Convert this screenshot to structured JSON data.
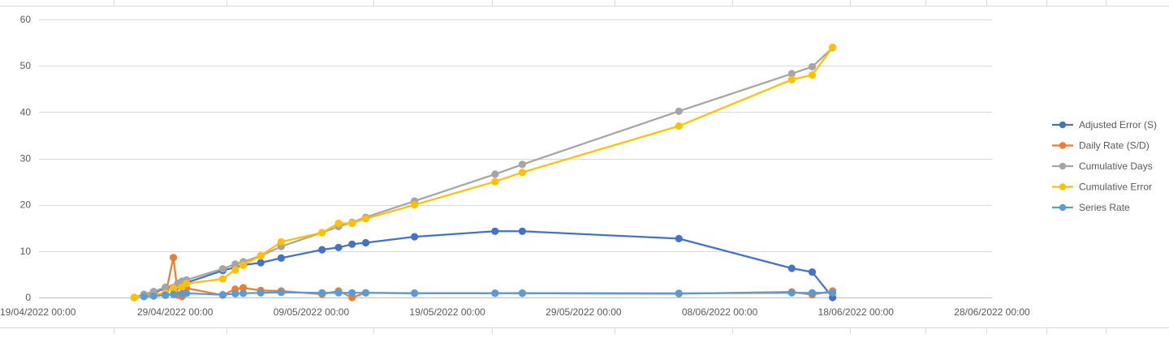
{
  "chart_data": {
    "type": "line",
    "title": "",
    "xlabel": "",
    "ylabel": "",
    "ylim": [
      0,
      60
    ],
    "yticks": [
      0,
      10,
      20,
      30,
      40,
      50,
      60
    ],
    "xlim": [
      "2022-04-19T00:00",
      "2022-06-28T00:00"
    ],
    "xticks": [
      {
        "value": "2022-04-19T00:00",
        "label": "19/04/2022 00:00"
      },
      {
        "value": "2022-04-29T00:00",
        "label": "29/04/2022 00:00"
      },
      {
        "value": "2022-05-09T00:00",
        "label": "09/05/2022 00:00"
      },
      {
        "value": "2022-05-19T00:00",
        "label": "19/05/2022 00:00"
      },
      {
        "value": "2022-05-29T00:00",
        "label": "29/05/2022 00:00"
      },
      {
        "value": "2022-06-08T00:00",
        "label": "08/06/2022 00:00"
      },
      {
        "value": "2022-06-18T00:00",
        "label": "18/06/2022 00:00"
      },
      {
        "value": "2022-06-28T00:00",
        "label": "28/06/2022 00:00"
      }
    ],
    "grid": true,
    "legend_position": "right",
    "series": [
      {
        "name": "Adjusted Error (S)",
        "color": "#4472C4",
        "points": [
          {
            "x": "2022-04-26T00:00",
            "y": 0
          },
          {
            "x": "2022-04-26T17:00",
            "y": 0.3
          },
          {
            "x": "2022-04-27T10:00",
            "y": 1
          },
          {
            "x": "2022-04-28T07:00",
            "y": 2
          },
          {
            "x": "2022-04-29T05:00",
            "y": 2.5
          },
          {
            "x": "2022-04-29T12:00",
            "y": 3
          },
          {
            "x": "2022-04-29T20:00",
            "y": 3.2
          },
          {
            "x": "2022-05-02T12:00",
            "y": 5.8
          },
          {
            "x": "2022-05-03T10:00",
            "y": 6.5
          },
          {
            "x": "2022-05-04T00:00",
            "y": 7
          },
          {
            "x": "2022-05-05T07:00",
            "y": 7.5
          },
          {
            "x": "2022-05-06T19:00",
            "y": 8.5
          },
          {
            "x": "2022-05-09T19:00",
            "y": 10.3
          },
          {
            "x": "2022-05-11T00:00",
            "y": 10.8
          },
          {
            "x": "2022-05-12T00:00",
            "y": 11.5
          },
          {
            "x": "2022-05-13T00:00",
            "y": 11.8
          },
          {
            "x": "2022-05-16T14:00",
            "y": 13.1
          },
          {
            "x": "2022-05-22T12:00",
            "y": 14.3
          },
          {
            "x": "2022-05-24T12:00",
            "y": 14.3
          },
          {
            "x": "2022-06-05T00:00",
            "y": 12.7
          },
          {
            "x": "2022-06-13T07:00",
            "y": 6.3
          },
          {
            "x": "2022-06-14T19:00",
            "y": 5.5
          },
          {
            "x": "2022-06-16T07:00",
            "y": 0
          }
        ]
      },
      {
        "name": "Daily Rate (S/D)",
        "color": "#ED7D31",
        "points": [
          {
            "x": "2022-04-26T00:00",
            "y": 0
          },
          {
            "x": "2022-04-26T17:00",
            "y": 0.5
          },
          {
            "x": "2022-04-27T10:00",
            "y": 1
          },
          {
            "x": "2022-04-28T07:00",
            "y": 0.5
          },
          {
            "x": "2022-04-28T21:00",
            "y": 8.6
          },
          {
            "x": "2022-04-29T05:00",
            "y": 0.5
          },
          {
            "x": "2022-04-29T12:00",
            "y": 0.2
          },
          {
            "x": "2022-04-29T20:00",
            "y": 2
          },
          {
            "x": "2022-05-02T12:00",
            "y": 0.5
          },
          {
            "x": "2022-05-03T10:00",
            "y": 1.8
          },
          {
            "x": "2022-05-04T00:00",
            "y": 2.1
          },
          {
            "x": "2022-05-05T07:00",
            "y": 1.5
          },
          {
            "x": "2022-05-06T19:00",
            "y": 1.4
          },
          {
            "x": "2022-05-09T19:00",
            "y": 0.7
          },
          {
            "x": "2022-05-11T00:00",
            "y": 1.4
          },
          {
            "x": "2022-05-12T00:00",
            "y": 0
          },
          {
            "x": "2022-05-13T00:00",
            "y": 1
          },
          {
            "x": "2022-05-16T14:00",
            "y": 0.9
          },
          {
            "x": "2022-05-22T12:00",
            "y": 0.9
          },
          {
            "x": "2022-05-24T12:00",
            "y": 0.9
          },
          {
            "x": "2022-06-05T00:00",
            "y": 0.8
          },
          {
            "x": "2022-06-13T07:00",
            "y": 1.2
          },
          {
            "x": "2022-06-14T19:00",
            "y": 0.6
          },
          {
            "x": "2022-06-16T07:00",
            "y": 1.4
          }
        ]
      },
      {
        "name": "Cumulative Days",
        "color": "#A5A5A5",
        "points": [
          {
            "x": "2022-04-26T00:00",
            "y": 0
          },
          {
            "x": "2022-04-26T17:00",
            "y": 0.7
          },
          {
            "x": "2022-04-27T10:00",
            "y": 1.3
          },
          {
            "x": "2022-04-28T07:00",
            "y": 2.2
          },
          {
            "x": "2022-04-29T05:00",
            "y": 3.1
          },
          {
            "x": "2022-04-29T12:00",
            "y": 3.5
          },
          {
            "x": "2022-04-29T20:00",
            "y": 3.8
          },
          {
            "x": "2022-05-02T12:00",
            "y": 6.2
          },
          {
            "x": "2022-05-03T10:00",
            "y": 7.2
          },
          {
            "x": "2022-05-04T00:00",
            "y": 7.7
          },
          {
            "x": "2022-05-05T07:00",
            "y": 9
          },
          {
            "x": "2022-05-06T19:00",
            "y": 11
          },
          {
            "x": "2022-05-09T19:00",
            "y": 14
          },
          {
            "x": "2022-05-11T00:00",
            "y": 15.3
          },
          {
            "x": "2022-05-12T00:00",
            "y": 16.2
          },
          {
            "x": "2022-05-13T00:00",
            "y": 17.3
          },
          {
            "x": "2022-05-16T14:00",
            "y": 20.8
          },
          {
            "x": "2022-05-22T12:00",
            "y": 26.6
          },
          {
            "x": "2022-05-24T12:00",
            "y": 28.7
          },
          {
            "x": "2022-06-05T00:00",
            "y": 40.2
          },
          {
            "x": "2022-06-13T07:00",
            "y": 48.3
          },
          {
            "x": "2022-06-14T19:00",
            "y": 49.8
          },
          {
            "x": "2022-06-16T07:00",
            "y": 53.9
          }
        ]
      },
      {
        "name": "Cumulative Error",
        "color": "#FFC000",
        "points": [
          {
            "x": "2022-04-26T00:00",
            "y": 0
          },
          {
            "x": "2022-04-28T07:00",
            "y": 1
          },
          {
            "x": "2022-04-28T21:00",
            "y": 2
          },
          {
            "x": "2022-04-29T12:00",
            "y": 2.2
          },
          {
            "x": "2022-04-29T20:00",
            "y": 3
          },
          {
            "x": "2022-05-02T12:00",
            "y": 4
          },
          {
            "x": "2022-05-03T10:00",
            "y": 6
          },
          {
            "x": "2022-05-04T00:00",
            "y": 7
          },
          {
            "x": "2022-05-05T07:00",
            "y": 9
          },
          {
            "x": "2022-05-06T19:00",
            "y": 12
          },
          {
            "x": "2022-05-09T19:00",
            "y": 14
          },
          {
            "x": "2022-05-11T00:00",
            "y": 16
          },
          {
            "x": "2022-05-12T00:00",
            "y": 16
          },
          {
            "x": "2022-05-13T00:00",
            "y": 17
          },
          {
            "x": "2022-05-16T14:00",
            "y": 20
          },
          {
            "x": "2022-05-22T12:00",
            "y": 25
          },
          {
            "x": "2022-05-24T12:00",
            "y": 27
          },
          {
            "x": "2022-06-05T00:00",
            "y": 37
          },
          {
            "x": "2022-06-13T07:00",
            "y": 47
          },
          {
            "x": "2022-06-14T19:00",
            "y": 48
          },
          {
            "x": "2022-06-16T07:00",
            "y": 54
          }
        ]
      },
      {
        "name": "Series Rate",
        "color": "#5B9BD5",
        "points": [
          {
            "x": "2022-04-26T17:00",
            "y": 0.2
          },
          {
            "x": "2022-04-27T10:00",
            "y": 0.3
          },
          {
            "x": "2022-04-28T07:00",
            "y": 0.5
          },
          {
            "x": "2022-04-28T21:00",
            "y": 0.7
          },
          {
            "x": "2022-04-29T12:00",
            "y": 0.8
          },
          {
            "x": "2022-04-29T20:00",
            "y": 0.9
          },
          {
            "x": "2022-05-02T12:00",
            "y": 0.6
          },
          {
            "x": "2022-05-03T10:00",
            "y": 0.8
          },
          {
            "x": "2022-05-04T00:00",
            "y": 0.9
          },
          {
            "x": "2022-05-05T07:00",
            "y": 1
          },
          {
            "x": "2022-05-06T19:00",
            "y": 1.1
          },
          {
            "x": "2022-05-09T19:00",
            "y": 1
          },
          {
            "x": "2022-05-11T00:00",
            "y": 1
          },
          {
            "x": "2022-05-12T00:00",
            "y": 1
          },
          {
            "x": "2022-05-13T00:00",
            "y": 1
          },
          {
            "x": "2022-05-16T14:00",
            "y": 0.95
          },
          {
            "x": "2022-05-22T12:00",
            "y": 0.95
          },
          {
            "x": "2022-05-24T12:00",
            "y": 0.95
          },
          {
            "x": "2022-06-05T00:00",
            "y": 0.9
          },
          {
            "x": "2022-06-13T07:00",
            "y": 1
          },
          {
            "x": "2022-06-14T19:00",
            "y": 1
          },
          {
            "x": "2022-06-16T07:00",
            "y": 1
          }
        ]
      }
    ]
  }
}
